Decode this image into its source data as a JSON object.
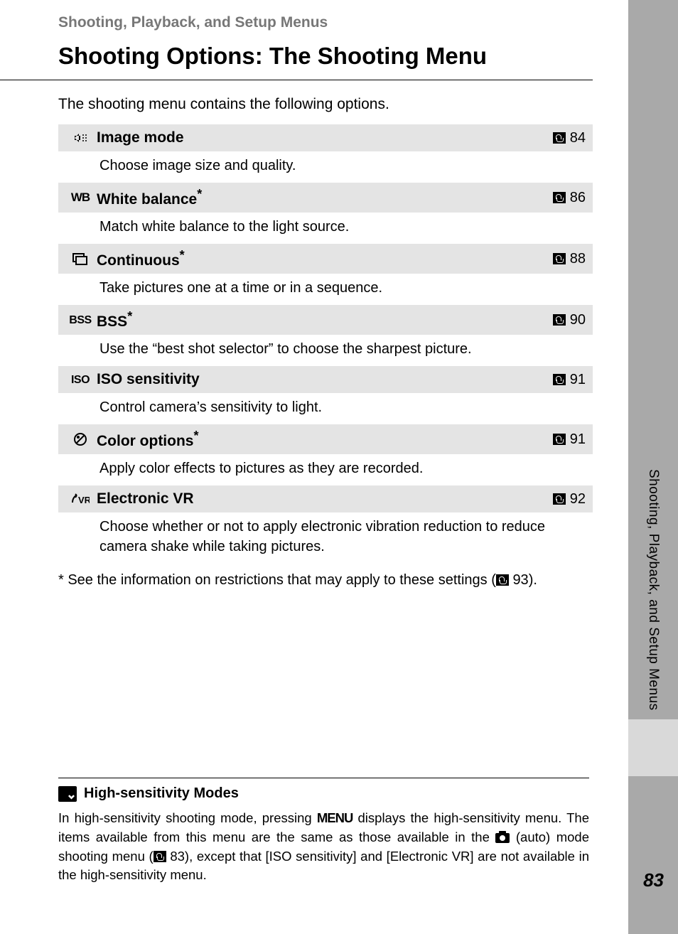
{
  "header": {
    "section_label": "Shooting, Playback, and Setup Menus",
    "title": "Shooting Options: The Shooting Menu"
  },
  "intro": "The shooting menu contains the following options.",
  "options": [
    {
      "icon": "image-mode",
      "label": "Image mode",
      "asterisk": false,
      "page": "84",
      "desc": "Choose image size and quality."
    },
    {
      "icon": "wb",
      "label": "White balance",
      "asterisk": true,
      "page": "86",
      "desc": "Match white balance to the light source."
    },
    {
      "icon": "continuous",
      "label": "Continuous",
      "asterisk": true,
      "page": "88",
      "desc": "Take pictures one at a time or in a sequence."
    },
    {
      "icon": "bss",
      "label": "BSS",
      "asterisk": true,
      "page": "90",
      "desc": "Use the “best shot selector” to choose the sharpest picture."
    },
    {
      "icon": "iso",
      "label": "ISO sensitivity",
      "asterisk": false,
      "page": "91",
      "desc": "Control camera’s sensitivity to light."
    },
    {
      "icon": "color",
      "label": "Color options",
      "asterisk": true,
      "page": "91",
      "desc": "Apply color effects to pictures as they are recorded."
    },
    {
      "icon": "evr",
      "label": "Electronic VR",
      "asterisk": false,
      "page": "92",
      "desc": "Choose whether or not to apply electronic vibration reduction to reduce camera shake while taking pictures."
    }
  ],
  "footnote": {
    "prefix": "* See the information on restrictions that may apply to these settings (",
    "page": "93",
    "suffix": ")."
  },
  "side_tab": "Shooting, Playback, and Setup Menus",
  "note": {
    "heading": "High-sensitivity Modes",
    "body_parts": {
      "p1": "In high-sensitivity shooting mode, pressing ",
      "menu": "MENU",
      "p2": " displays the high-sensitivity menu. The items available from this menu are the same as those available in the ",
      "p3": " (auto) mode shooting menu (",
      "ref_page": "83",
      "p4": "), except that [ISO sensitivity] and [Electronic VR] are not available in the high-sensitivity menu."
    }
  },
  "page_number": "83",
  "colors": {
    "page_bg": "#ffffff",
    "outer_bg": "#a9a9a9",
    "row_bg": "#e4e4e4",
    "section_label": "#777777",
    "side_block": "#d9d9d9"
  }
}
